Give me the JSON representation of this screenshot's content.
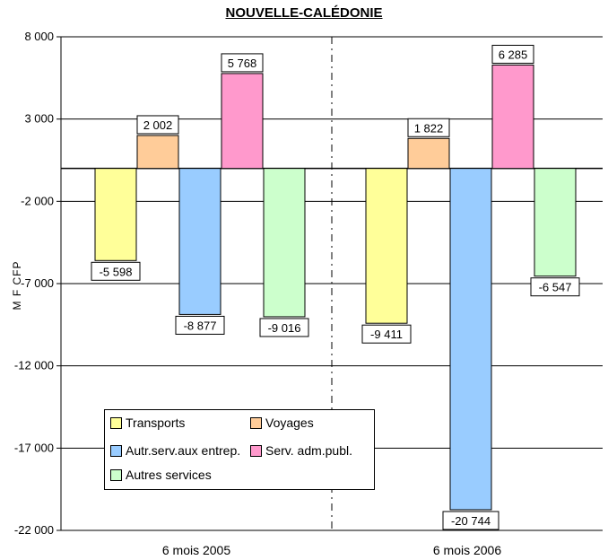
{
  "chart_data": {
    "type": "bar",
    "title": "NOUVELLE-CALÉDONIE",
    "ylabel": "M F CFP",
    "ylim": [
      -22000,
      8000
    ],
    "yticks": [
      8000,
      3000,
      -2000,
      -7000,
      -12000,
      -17000,
      -22000
    ],
    "ytick_labels": [
      "8 000",
      "3 000",
      "-2 000",
      "-7 000",
      "-12 000",
      "-17 000",
      "-22 000"
    ],
    "categories": [
      "6 mois 2005",
      "6 mois 2006"
    ],
    "series": [
      {
        "name": "Transports",
        "color": "#ffff99",
        "values": [
          -5598,
          -9411
        ],
        "labels": [
          "-5 598",
          "-9 411"
        ]
      },
      {
        "name": "Voyages",
        "color": "#ffcc99",
        "values": [
          2002,
          1822
        ],
        "labels": [
          "2 002",
          "1 822"
        ]
      },
      {
        "name": "Autr.serv.aux entrep.",
        "color": "#99ccff",
        "values": [
          -8877,
          -20744
        ],
        "labels": [
          "-8 877",
          "-20 744"
        ]
      },
      {
        "name": "Serv. adm.publ.",
        "color": "#ff99cc",
        "values": [
          5768,
          6285
        ],
        "labels": [
          "5 768",
          "6 285"
        ]
      },
      {
        "name": "Autres services",
        "color": "#ccffcc",
        "values": [
          -9016,
          -6547
        ],
        "labels": [
          "-9 016",
          "-6 547"
        ]
      }
    ],
    "legend_position": "bottom-left",
    "grid": true
  }
}
